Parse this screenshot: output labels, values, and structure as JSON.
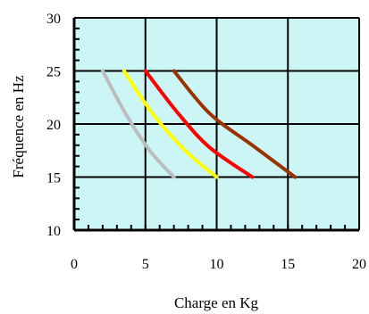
{
  "chart_data": {
    "type": "line",
    "title": "",
    "xlabel": "Charge en Kg",
    "ylabel": "Fréquence en Hz",
    "xlim": [
      0,
      20
    ],
    "ylim": [
      10,
      30
    ],
    "x_ticks": [
      "0",
      "5",
      "10",
      "15",
      "20"
    ],
    "y_ticks": [
      "10",
      "15",
      "20",
      "25",
      "30"
    ],
    "grid": true,
    "plot_background": "#ccf5f5",
    "series": [
      {
        "color": "#bdbdbd",
        "points": [
          [
            2,
            25
          ],
          [
            3.6,
            21
          ],
          [
            5.3,
            17.5
          ],
          [
            7,
            15
          ]
        ]
      },
      {
        "color": "#ffff00",
        "points": [
          [
            3.5,
            25
          ],
          [
            5.5,
            21
          ],
          [
            7.8,
            17.5
          ],
          [
            10,
            15
          ]
        ]
      },
      {
        "color": "#ff0000",
        "points": [
          [
            5,
            25
          ],
          [
            7.3,
            21
          ],
          [
            9.5,
            17.8
          ],
          [
            12.5,
            15
          ]
        ]
      },
      {
        "color": "#993300",
        "points": [
          [
            7,
            25
          ],
          [
            9.5,
            21
          ],
          [
            12.5,
            18
          ],
          [
            15.5,
            15
          ]
        ]
      }
    ]
  }
}
